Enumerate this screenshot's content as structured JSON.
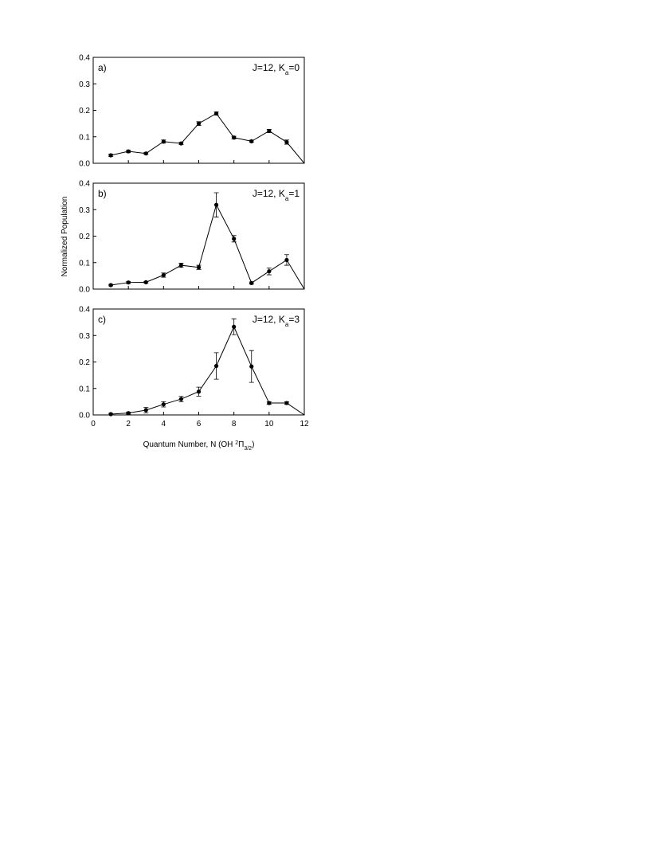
{
  "ylabel": "Normalized Population",
  "xlabel_parts": [
    "Quantum Number, N (OH ",
    "2",
    "Π",
    "3/2",
    ")"
  ],
  "chart_data": [
    {
      "type": "line",
      "panel": "a)",
      "label_parts": [
        "J=12, K",
        "a",
        "=0"
      ],
      "color": "#000000",
      "x": [
        1,
        2,
        3,
        4,
        5,
        6,
        7,
        8,
        9,
        10,
        11,
        12
      ],
      "values": [
        0.03,
        0.045,
        0.037,
        0.082,
        0.075,
        0.15,
        0.188,
        0.097,
        0.083,
        0.122,
        0.08,
        0
      ],
      "errors": [
        0.004,
        0.005,
        0.004,
        0.006,
        0.004,
        0.007,
        0.006,
        0.005,
        0.004,
        0.006,
        0.008,
        null
      ],
      "xlim": [
        0,
        12
      ],
      "ylim": [
        0,
        0.4
      ],
      "xticks": [
        0,
        2,
        4,
        6,
        8,
        10,
        12
      ],
      "xtick_labels": false,
      "yticks": [
        {
          "value": 0,
          "label": "0.0"
        },
        0.1,
        0.2,
        0.3,
        0.4
      ]
    },
    {
      "type": "line",
      "panel": "b)",
      "label_parts": [
        "J=12, K",
        "a",
        "=1"
      ],
      "color": "#000000",
      "x": [
        1,
        2,
        3,
        4,
        5,
        6,
        7,
        8,
        9,
        10,
        11,
        12
      ],
      "values": [
        0.015,
        0.025,
        0.026,
        0.053,
        0.09,
        0.082,
        0.318,
        0.19,
        0.023,
        0.067,
        0.11,
        0
      ],
      "errors": [
        0.003,
        0.004,
        0.003,
        0.008,
        0.008,
        0.008,
        0.046,
        0.012,
        0.004,
        0.013,
        0.02,
        null
      ],
      "xlim": [
        0,
        12
      ],
      "ylim": [
        0,
        0.4
      ],
      "xticks": [
        0,
        2,
        4,
        6,
        8,
        10,
        12
      ],
      "xtick_labels": false,
      "yticks": [
        {
          "value": 0,
          "label": "0.0"
        },
        0.1,
        0.2,
        0.3,
        0.4
      ]
    },
    {
      "type": "line",
      "panel": "c)",
      "label_parts": [
        "J=12, K",
        "a",
        "=3"
      ],
      "color": "#000000",
      "x": [
        1,
        2,
        3,
        4,
        5,
        6,
        7,
        8,
        9,
        10,
        11,
        12
      ],
      "values": [
        0.003,
        0.007,
        0.018,
        0.04,
        0.06,
        0.088,
        0.185,
        0.333,
        0.183,
        0.045,
        0.045,
        0
      ],
      "errors": [
        0.003,
        0.004,
        0.01,
        0.01,
        0.01,
        0.017,
        0.05,
        0.03,
        0.06,
        0.005,
        0.005,
        null
      ],
      "xlim": [
        0,
        12
      ],
      "ylim": [
        0,
        0.4
      ],
      "xticks": [
        0,
        2,
        4,
        6,
        8,
        10,
        12
      ],
      "xtick_labels": true,
      "yticks": [
        {
          "value": 0,
          "label": "0.0"
        },
        0.1,
        0.2,
        0.3,
        0.4
      ]
    }
  ]
}
